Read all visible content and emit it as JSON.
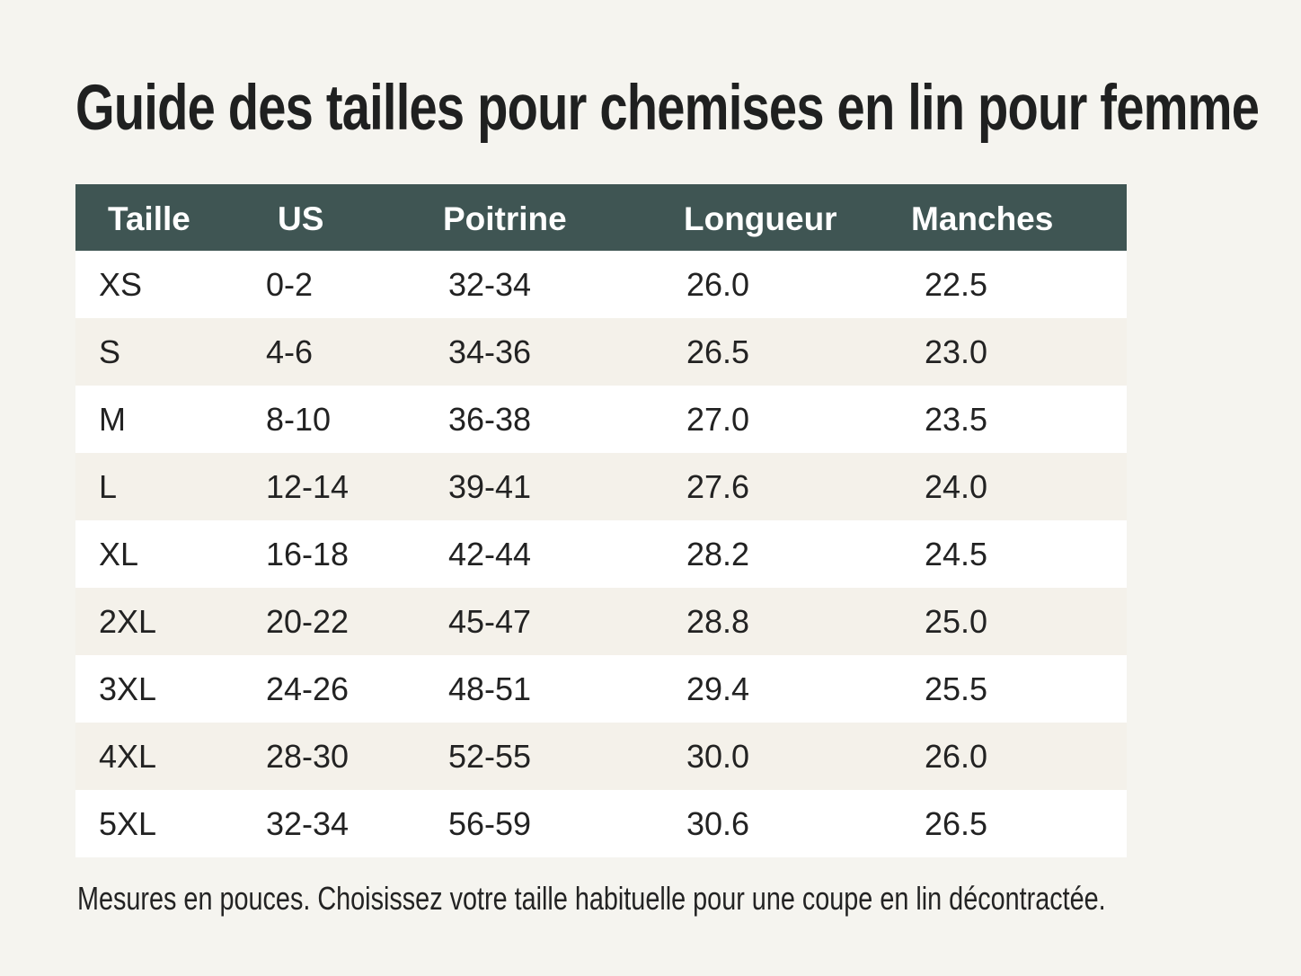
{
  "title": "Guide des tailles pour chemises en lin pour femme",
  "table": {
    "headers": {
      "taille": "Taille",
      "us": "US",
      "poitrine": "Poitrine",
      "longueur": "Longueur",
      "manches": "Manches"
    },
    "rows": [
      {
        "taille": "XS",
        "us": "0-2",
        "poitrine": "32-34",
        "longueur": "26.0",
        "manches": "22.5"
      },
      {
        "taille": "S",
        "us": "4-6",
        "poitrine": "34-36",
        "longueur": "26.5",
        "manches": "23.0"
      },
      {
        "taille": "M",
        "us": "8-10",
        "poitrine": "36-38",
        "longueur": "27.0",
        "manches": "23.5"
      },
      {
        "taille": "L",
        "us": "12-14",
        "poitrine": "39-41",
        "longueur": "27.6",
        "manches": "24.0"
      },
      {
        "taille": "XL",
        "us": "16-18",
        "poitrine": "42-44",
        "longueur": "28.2",
        "manches": "24.5"
      },
      {
        "taille": "2XL",
        "us": "20-22",
        "poitrine": "45-47",
        "longueur": "28.8",
        "manches": "25.0"
      },
      {
        "taille": "3XL",
        "us": "24-26",
        "poitrine": "48-51",
        "longueur": "29.4",
        "manches": "25.5"
      },
      {
        "taille": "4XL",
        "us": "28-30",
        "poitrine": "52-55",
        "longueur": "30.0",
        "manches": "26.0"
      },
      {
        "taille": "5XL",
        "us": "32-34",
        "poitrine": "56-59",
        "longueur": "30.6",
        "manches": "26.5"
      }
    ]
  },
  "footnote": "Mesures en pouces. Choisissez votre taille habituelle pour une coupe en lin décontractée.",
  "colors": {
    "background": "#f5f4ef",
    "header": "#3f5553",
    "row_light": "#ffffff",
    "row_alt": "#f4f1ea",
    "text": "#1e1e1e"
  }
}
